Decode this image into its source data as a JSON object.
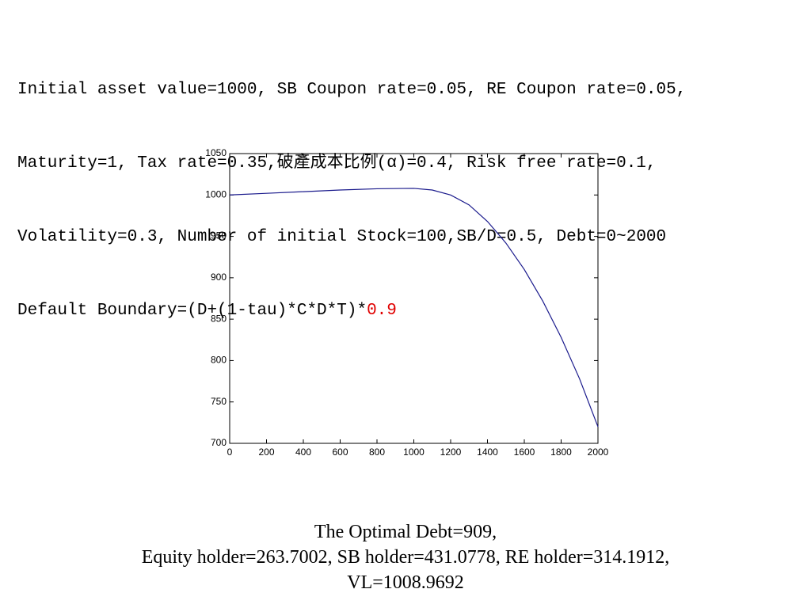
{
  "header": {
    "lines": [
      "Initial asset value=1000, SB Coupon rate=0.05, RE Coupon rate=0.05,",
      "Maturity=1, Tax rate=0.35,破產成本比例(α)=0.4, Risk free rate=0.1,",
      "Volatility=0.3, Number of initial Stock=100,SB/D=0.5, Debt=0~2000"
    ],
    "last_line": "Default Boundary=(D+(1-tau)*C*D*T)*",
    "last_line_highlight": "0.9"
  },
  "chart_data": {
    "type": "line",
    "x": [
      0,
      200,
      400,
      600,
      800,
      1000,
      1100,
      1200,
      1300,
      1400,
      1500,
      1600,
      1700,
      1800,
      1900,
      2000
    ],
    "series": [
      {
        "color": "#1a1a8c",
        "values": [
          1000,
          1002,
          1004,
          1006,
          1007.5,
          1008,
          1006,
          1000,
          988,
          968,
          942,
          910,
          872,
          828,
          778,
          720
        ]
      }
    ],
    "xlim": [
      0,
      2000
    ],
    "xticks": [
      0,
      200,
      400,
      600,
      800,
      1000,
      1200,
      1400,
      1600,
      1800,
      2000
    ],
    "ylim": [
      700,
      1050
    ],
    "yticks": [
      700,
      750,
      800,
      850,
      900,
      950,
      1000,
      1050
    ]
  },
  "footer": {
    "lines": [
      "The Optimal Debt=909,",
      "Equity holder=263.7002, SB holder=431.0778, RE holder=314.1912,",
      "VL=1008.9692"
    ]
  }
}
